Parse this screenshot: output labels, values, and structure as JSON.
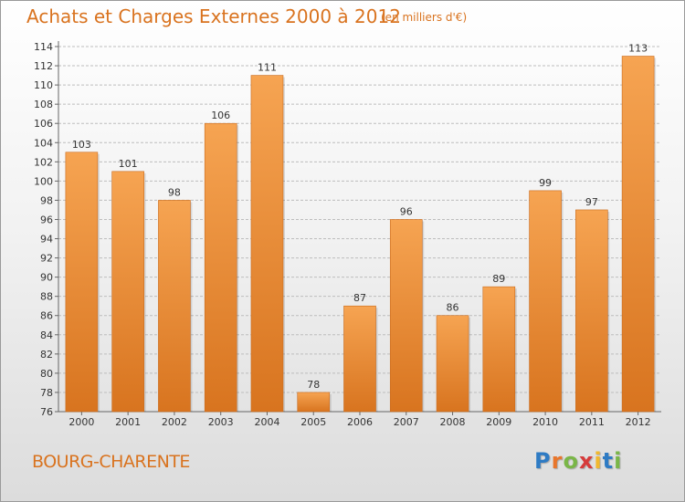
{
  "title": "Achats et Charges Externes 2000 à 2012",
  "subtitle": "(en milliers d'€)",
  "location": "BOURG-CHARENTE",
  "logo": {
    "text": "Proxiti",
    "letters": [
      {
        "ch": "P",
        "color": "#2e7bc4"
      },
      {
        "ch": "r",
        "color": "#e8762c"
      },
      {
        "ch": "o",
        "color": "#7ab648"
      },
      {
        "ch": "x",
        "color": "#d63b3b"
      },
      {
        "ch": "i",
        "color": "#f1b82d"
      },
      {
        "ch": "t",
        "color": "#2e7bc4"
      },
      {
        "ch": "i",
        "color": "#7ab648"
      }
    ]
  },
  "colors": {
    "accent": "#d9731f",
    "bar_light": "#f6a452",
    "bar_dark": "#d8741f",
    "grid": "#bdbdbd"
  },
  "chart_data": {
    "type": "bar",
    "categories": [
      "2000",
      "2001",
      "2002",
      "2003",
      "2004",
      "2005",
      "2006",
      "2007",
      "2008",
      "2009",
      "2010",
      "2011",
      "2012"
    ],
    "values": [
      103,
      101,
      98,
      106,
      111,
      78,
      87,
      96,
      86,
      89,
      99,
      97,
      113
    ],
    "ylim": [
      76,
      114
    ],
    "yticks": [
      76,
      78,
      80,
      82,
      84,
      86,
      88,
      90,
      92,
      94,
      96,
      98,
      100,
      102,
      104,
      106,
      108,
      110,
      112,
      114
    ],
    "grid": true,
    "data_labels": true
  }
}
